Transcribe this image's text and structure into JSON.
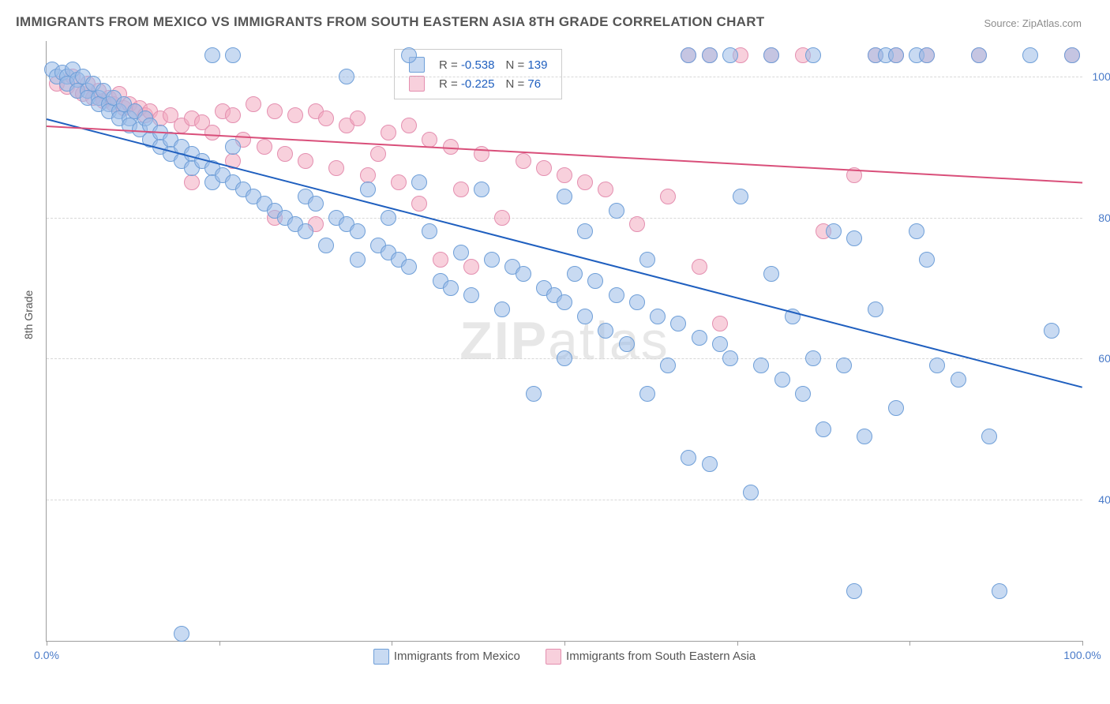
{
  "title": "IMMIGRANTS FROM MEXICO VS IMMIGRANTS FROM SOUTH EASTERN ASIA 8TH GRADE CORRELATION CHART",
  "source_label": "Source: ZipAtlas.com",
  "y_axis_title": "8th Grade",
  "watermark_a": "ZIP",
  "watermark_b": "atlas",
  "chart": {
    "type": "scatter",
    "xlim": [
      0,
      100
    ],
    "ylim": [
      20,
      105
    ],
    "x_ticks": [
      0,
      16.7,
      33.3,
      50,
      66.7,
      83.3,
      100
    ],
    "x_tick_labels": {
      "0": "0.0%",
      "100": "100.0%"
    },
    "y_grid": [
      40,
      60,
      80,
      100
    ],
    "y_tick_labels": {
      "40": "40.0%",
      "60": "60.0%",
      "80": "80.0%",
      "100": "100.0%"
    },
    "background_color": "#ffffff",
    "grid_color": "#d8d8d8",
    "axis_color": "#9e9e9e",
    "tick_label_color": "#4a7bc9",
    "tick_fontsize": 14,
    "point_radius": 9,
    "series": [
      {
        "name": "Immigrants from Mexico",
        "fill": "rgba(154,188,232,0.55)",
        "stroke": "#6f9fd8",
        "reg_color": "#1f5fbf",
        "R_label": "R = ",
        "R": "-0.538",
        "N_label": "N = ",
        "N": "139",
        "reg": {
          "x1": 0,
          "y1": 94,
          "x2": 100,
          "y2": 56
        },
        "data": [
          [
            0.5,
            101
          ],
          [
            1,
            100
          ],
          [
            1.5,
            100.5
          ],
          [
            2,
            100
          ],
          [
            2,
            99
          ],
          [
            2.5,
            101
          ],
          [
            3,
            99.5
          ],
          [
            3,
            98
          ],
          [
            3.5,
            100
          ],
          [
            4,
            98
          ],
          [
            4,
            97
          ],
          [
            4.5,
            99
          ],
          [
            5,
            97
          ],
          [
            5,
            96
          ],
          [
            5.5,
            98
          ],
          [
            6,
            96
          ],
          [
            6,
            95
          ],
          [
            6.5,
            97
          ],
          [
            7,
            95
          ],
          [
            7,
            94
          ],
          [
            7.5,
            96
          ],
          [
            8,
            94
          ],
          [
            8,
            93
          ],
          [
            8.5,
            95
          ],
          [
            9,
            92.5
          ],
          [
            9.5,
            94
          ],
          [
            10,
            91
          ],
          [
            10,
            93
          ],
          [
            11,
            92
          ],
          [
            11,
            90
          ],
          [
            12,
            91
          ],
          [
            12,
            89
          ],
          [
            13,
            90
          ],
          [
            13,
            88
          ],
          [
            14,
            89
          ],
          [
            14,
            87
          ],
          [
            15,
            88
          ],
          [
            16,
            87
          ],
          [
            16,
            85
          ],
          [
            17,
            86
          ],
          [
            18,
            85
          ],
          [
            18,
            90
          ],
          [
            19,
            84
          ],
          [
            20,
            83
          ],
          [
            21,
            82
          ],
          [
            22,
            81
          ],
          [
            23,
            80
          ],
          [
            24,
            79
          ],
          [
            25,
            78
          ],
          [
            25,
            83
          ],
          [
            26,
            82
          ],
          [
            27,
            76
          ],
          [
            28,
            80
          ],
          [
            29,
            79
          ],
          [
            30,
            78
          ],
          [
            30,
            74
          ],
          [
            31,
            84
          ],
          [
            32,
            76
          ],
          [
            33,
            75
          ],
          [
            33,
            80
          ],
          [
            34,
            74
          ],
          [
            35,
            73
          ],
          [
            36,
            85
          ],
          [
            37,
            78
          ],
          [
            38,
            71
          ],
          [
            39,
            70
          ],
          [
            40,
            75
          ],
          [
            41,
            69
          ],
          [
            42,
            84
          ],
          [
            43,
            74
          ],
          [
            44,
            67
          ],
          [
            45,
            73
          ],
          [
            46,
            72
          ],
          [
            47,
            55
          ],
          [
            48,
            70
          ],
          [
            49,
            69
          ],
          [
            50,
            68
          ],
          [
            50,
            83
          ],
          [
            50,
            60
          ],
          [
            51,
            72
          ],
          [
            52,
            66
          ],
          [
            53,
            71
          ],
          [
            54,
            64
          ],
          [
            55,
            69
          ],
          [
            56,
            62
          ],
          [
            57,
            68
          ],
          [
            58,
            55
          ],
          [
            59,
            66
          ],
          [
            60,
            59
          ],
          [
            61,
            65
          ],
          [
            62,
            46
          ],
          [
            63,
            63
          ],
          [
            64,
            45
          ],
          [
            65,
            62
          ],
          [
            66,
            60
          ],
          [
            67,
            83
          ],
          [
            68,
            41
          ],
          [
            69,
            59
          ],
          [
            70,
            72
          ],
          [
            71,
            57
          ],
          [
            72,
            66
          ],
          [
            73,
            55
          ],
          [
            74,
            60
          ],
          [
            75,
            50
          ],
          [
            76,
            78
          ],
          [
            77,
            59
          ],
          [
            78,
            77
          ],
          [
            79,
            49
          ],
          [
            80,
            103
          ],
          [
            81,
            103
          ],
          [
            82,
            103
          ],
          [
            84,
            103
          ],
          [
            85,
            103
          ],
          [
            78,
            27
          ],
          [
            80,
            67
          ],
          [
            82,
            53
          ],
          [
            84,
            78
          ],
          [
            85,
            74
          ],
          [
            86,
            59
          ],
          [
            88,
            57
          ],
          [
            90,
            103
          ],
          [
            91,
            49
          ],
          [
            92,
            27
          ],
          [
            95,
            103
          ],
          [
            97,
            64
          ],
          [
            99,
            103
          ],
          [
            62,
            103
          ],
          [
            64,
            103
          ],
          [
            66,
            103
          ],
          [
            70,
            103
          ],
          [
            74,
            103
          ],
          [
            16,
            103
          ],
          [
            18,
            103
          ],
          [
            35,
            103
          ],
          [
            29,
            100
          ],
          [
            52,
            78
          ],
          [
            55,
            81
          ],
          [
            58,
            74
          ],
          [
            13,
            21
          ]
        ]
      },
      {
        "name": "Immigrants from South Eastern Asia",
        "fill": "rgba(242,170,192,0.55)",
        "stroke": "#e48fb0",
        "reg_color": "#d94f7a",
        "R_label": "R = ",
        "R": "-0.225",
        "N_label": "N = ",
        "N": "76",
        "reg": {
          "x1": 0,
          "y1": 93,
          "x2": 100,
          "y2": 85
        },
        "data": [
          [
            1,
            99
          ],
          [
            2,
            98.5
          ],
          [
            2.5,
            100
          ],
          [
            3,
            98
          ],
          [
            3.5,
            97.5
          ],
          [
            4,
            99
          ],
          [
            4.5,
            97
          ],
          [
            5,
            98
          ],
          [
            5.5,
            96.5
          ],
          [
            6,
            97
          ],
          [
            6.5,
            96
          ],
          [
            7,
            97.5
          ],
          [
            7.5,
            95.5
          ],
          [
            8,
            96
          ],
          [
            8.5,
            95
          ],
          [
            9,
            95.5
          ],
          [
            9.5,
            94.5
          ],
          [
            10,
            95
          ],
          [
            11,
            94
          ],
          [
            12,
            94.5
          ],
          [
            13,
            93
          ],
          [
            14,
            94
          ],
          [
            15,
            93.5
          ],
          [
            16,
            92
          ],
          [
            17,
            95
          ],
          [
            18,
            94.5
          ],
          [
            19,
            91
          ],
          [
            20,
            96
          ],
          [
            21,
            90
          ],
          [
            22,
            95
          ],
          [
            23,
            89
          ],
          [
            24,
            94.5
          ],
          [
            25,
            88
          ],
          [
            26,
            95
          ],
          [
            27,
            94
          ],
          [
            28,
            87
          ],
          [
            29,
            93
          ],
          [
            30,
            94
          ],
          [
            31,
            86
          ],
          [
            32,
            89
          ],
          [
            33,
            92
          ],
          [
            34,
            85
          ],
          [
            35,
            93
          ],
          [
            36,
            82
          ],
          [
            37,
            91
          ],
          [
            38,
            74
          ],
          [
            39,
            90
          ],
          [
            40,
            84
          ],
          [
            41,
            73
          ],
          [
            42,
            89
          ],
          [
            44,
            80
          ],
          [
            46,
            88
          ],
          [
            48,
            87
          ],
          [
            50,
            86
          ],
          [
            52,
            85
          ],
          [
            54,
            84
          ],
          [
            57,
            79
          ],
          [
            60,
            83
          ],
          [
            62,
            103
          ],
          [
            63,
            73
          ],
          [
            64,
            103
          ],
          [
            65,
            65
          ],
          [
            67,
            103
          ],
          [
            70,
            103
          ],
          [
            73,
            103
          ],
          [
            75,
            78
          ],
          [
            78,
            86
          ],
          [
            80,
            103
          ],
          [
            82,
            103
          ],
          [
            85,
            103
          ],
          [
            90,
            103
          ],
          [
            99,
            103
          ],
          [
            14,
            85
          ],
          [
            18,
            88
          ],
          [
            22,
            80
          ],
          [
            26,
            79
          ]
        ]
      }
    ]
  }
}
